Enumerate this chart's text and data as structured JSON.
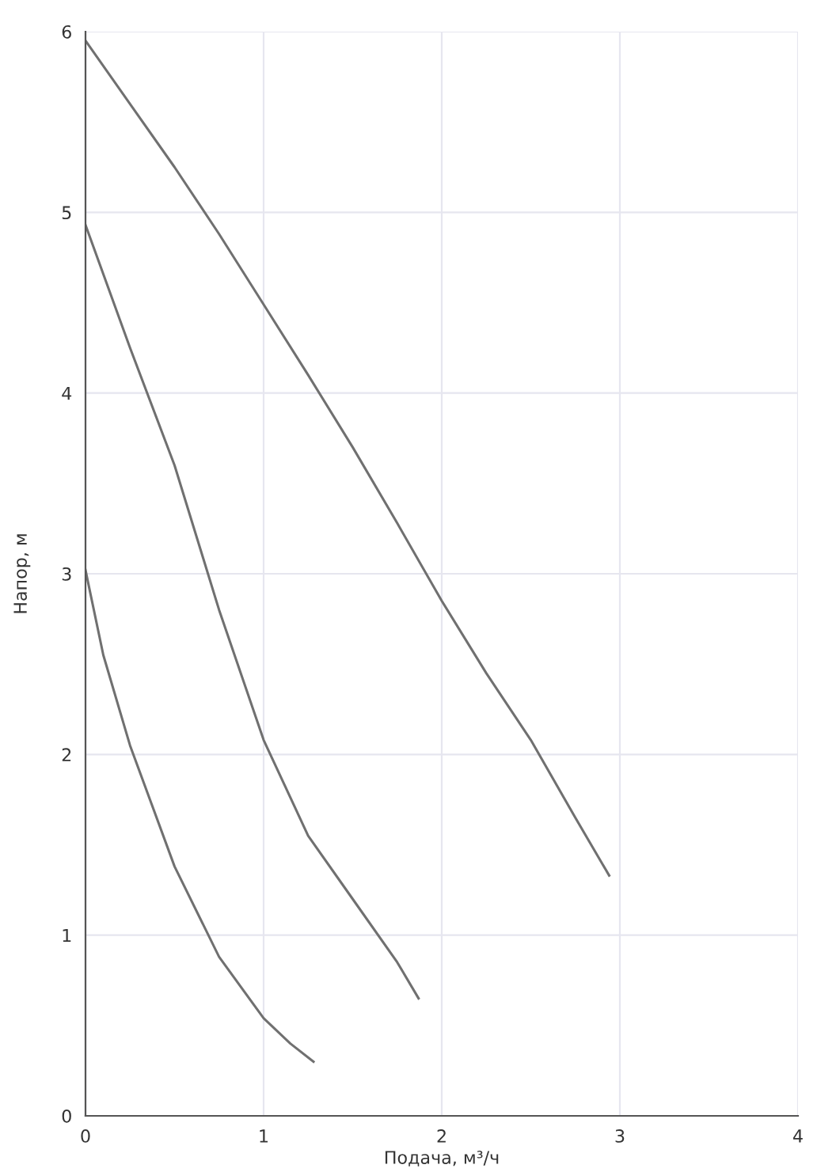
{
  "chart_data": {
    "type": "line",
    "xlabel": "Подача, м³/ч",
    "ylabel": "Напор, м",
    "xlim": [
      0,
      4
    ],
    "ylim": [
      0,
      6
    ],
    "xticks": [
      0,
      1,
      2,
      3,
      4
    ],
    "yticks": [
      0,
      1,
      2,
      3,
      4,
      5,
      6
    ],
    "grid": true,
    "marker": "none",
    "line_style": "solid",
    "series": [
      {
        "color": "#707070",
        "x": [
          0,
          0.25,
          0.5,
          0.75,
          1,
          1.25,
          1.5,
          1.75,
          2,
          2.25,
          2.5,
          2.75,
          2.94
        ],
        "values": [
          5.95,
          5.6,
          5.25,
          4.88,
          4.49,
          4.1,
          3.7,
          3.28,
          2.85,
          2.45,
          2.08,
          1.65,
          1.33
        ]
      },
      {
        "color": "#707070",
        "x": [
          0,
          0.25,
          0.5,
          0.75,
          1,
          1.25,
          1.5,
          1.75,
          1.87
        ],
        "values": [
          4.93,
          4.25,
          3.6,
          2.8,
          2.08,
          1.55,
          1.2,
          0.85,
          0.65
        ]
      },
      {
        "color": "#707070",
        "x": [
          0,
          0.1,
          0.25,
          0.5,
          0.75,
          1,
          1.15,
          1.28
        ],
        "values": [
          3.02,
          2.55,
          2.05,
          1.38,
          0.88,
          0.54,
          0.4,
          0.3
        ]
      }
    ]
  }
}
